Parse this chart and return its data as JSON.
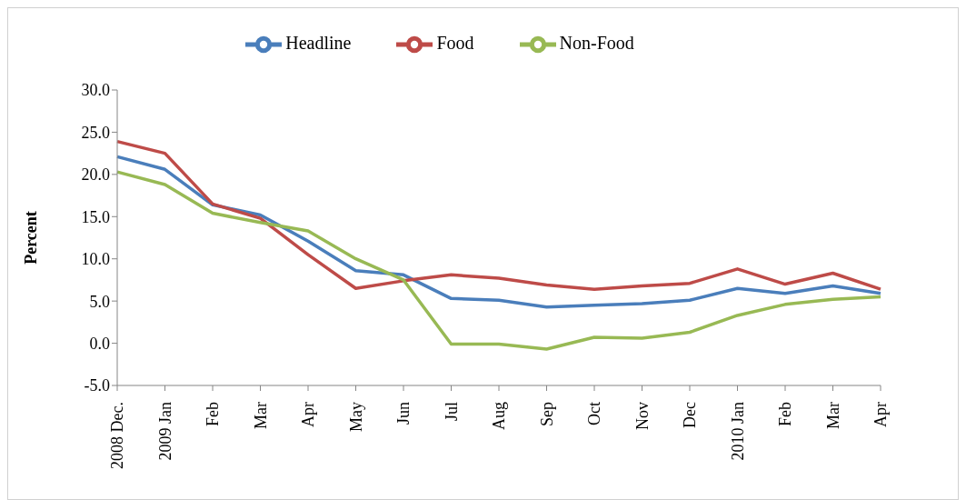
{
  "chart_data": {
    "type": "line",
    "ylabel": "Percent",
    "categories": [
      "2008 Dec.",
      "2009 Jan",
      "Feb",
      "Mar",
      "Apr",
      "May",
      "Jun",
      "Jul",
      "Aug",
      "Sep",
      "Oct",
      "Nov",
      "Dec",
      "2010 Jan",
      "Feb",
      "Mar",
      "Apr"
    ],
    "series": [
      {
        "name": "Headline",
        "color": "#4a7ebb",
        "values": [
          22.1,
          20.6,
          16.4,
          15.2,
          12.1,
          8.6,
          8.1,
          5.3,
          5.1,
          4.3,
          4.5,
          4.7,
          5.1,
          6.5,
          5.9,
          6.8,
          5.9
        ]
      },
      {
        "name": "Food",
        "color": "#be4b48",
        "values": [
          23.9,
          22.5,
          16.5,
          14.8,
          10.5,
          6.5,
          7.4,
          8.1,
          7.7,
          6.9,
          6.4,
          6.8,
          7.1,
          8.8,
          7.0,
          8.3,
          6.4
        ]
      },
      {
        "name": "Non-Food",
        "color": "#98b954",
        "values": [
          20.3,
          18.8,
          15.4,
          14.3,
          13.3,
          10.0,
          7.5,
          -0.1,
          -0.1,
          -0.7,
          0.7,
          0.6,
          1.3,
          3.3,
          4.6,
          5.2,
          5.5
        ]
      }
    ],
    "ylim": [
      -5,
      30
    ],
    "yticks": [
      {
        "value": -5,
        "label": "-5.0"
      },
      {
        "value": 0,
        "label": "0.0"
      },
      {
        "value": 5,
        "label": "5.0"
      },
      {
        "value": 10,
        "label": "10.0"
      },
      {
        "value": 15,
        "label": "15.0"
      },
      {
        "value": 20,
        "label": "20.0"
      },
      {
        "value": 25,
        "label": "25.0"
      },
      {
        "value": 30,
        "label": "30.0"
      }
    ],
    "grid": false,
    "legend": "top",
    "marker": "none",
    "line_style": "solid"
  }
}
